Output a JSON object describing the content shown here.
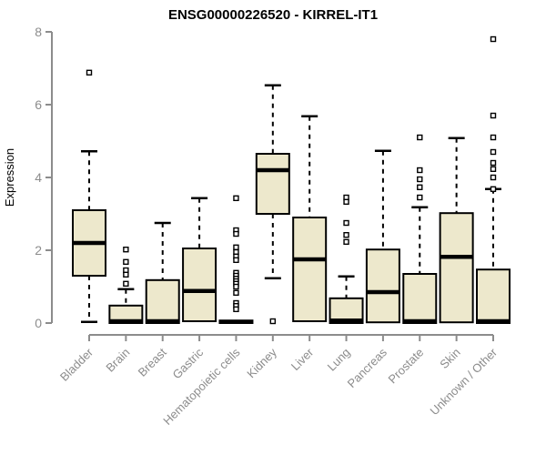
{
  "colors": {
    "background": "#ffffff",
    "box_fill": "#EDE8CC",
    "box_stroke": "#000000",
    "median": "#000000",
    "whisker": "#000000",
    "outlier_stroke": "#000000",
    "outlier_fill": "#ffffff",
    "axis": "#8c8c8c",
    "tick_label": "#8c8c8c",
    "title": "#000000"
  },
  "chart_data": {
    "type": "boxplot",
    "title": "ENSG00000226520 - KIRREL-IT1",
    "xlabel": "",
    "ylabel": "Expression",
    "ylim": [
      0,
      8
    ],
    "yticks": [
      0,
      2,
      4,
      6,
      8
    ],
    "grid": false,
    "legend": "none",
    "categories": [
      "Bladder",
      "Brain",
      "Breast",
      "Gastric",
      "Hematopoietic cells",
      "Kidney",
      "Liver",
      "Lung",
      "Pancreas",
      "Prostate",
      "Skin",
      "Unknown / Other"
    ],
    "series": [
      {
        "name": "Bladder",
        "whisker_low": 0.03,
        "q1": 1.3,
        "median": 2.2,
        "q3": 3.1,
        "whisker_high": 4.72,
        "outliers": [
          6.88
        ]
      },
      {
        "name": "Brain",
        "whisker_low": 0.0,
        "q1": 0.0,
        "median": 0.05,
        "q3": 0.48,
        "whisker_high": 0.93,
        "outliers": [
          2.02,
          1.68,
          1.45,
          1.33,
          1.08
        ]
      },
      {
        "name": "Breast",
        "whisker_low": 0.0,
        "q1": 0.0,
        "median": 0.05,
        "q3": 1.18,
        "whisker_high": 2.75,
        "outliers": []
      },
      {
        "name": "Gastric",
        "whisker_low": 0.05,
        "q1": 0.05,
        "median": 0.88,
        "q3": 2.05,
        "whisker_high": 3.43,
        "outliers": []
      },
      {
        "name": "Hematopoietic cells",
        "whisker_low": 0.0,
        "q1": 0.0,
        "median": 0.03,
        "q3": 0.07,
        "whisker_high": 0.07,
        "outliers": [
          3.43,
          2.55,
          2.45,
          2.08,
          1.95,
          1.83,
          1.73,
          1.38,
          1.3,
          1.22,
          1.15,
          1.08,
          1.0,
          0.83,
          0.55,
          0.47,
          0.38
        ]
      },
      {
        "name": "Kidney",
        "whisker_low": 1.23,
        "q1": 3.0,
        "median": 4.2,
        "q3": 4.65,
        "whisker_high": 6.53,
        "outliers": [
          0.05
        ]
      },
      {
        "name": "Liver",
        "whisker_low": 0.05,
        "q1": 0.05,
        "median": 1.75,
        "q3": 2.9,
        "whisker_high": 5.68,
        "outliers": []
      },
      {
        "name": "Lung",
        "whisker_low": 0.0,
        "q1": 0.0,
        "median": 0.07,
        "q3": 0.68,
        "whisker_high": 1.28,
        "outliers": [
          3.45,
          3.33,
          2.75,
          2.42,
          2.23
        ]
      },
      {
        "name": "Pancreas",
        "whisker_low": 0.02,
        "q1": 0.02,
        "median": 0.85,
        "q3": 2.02,
        "whisker_high": 4.73,
        "outliers": []
      },
      {
        "name": "Prostate",
        "whisker_low": 0.0,
        "q1": 0.0,
        "median": 0.05,
        "q3": 1.35,
        "whisker_high": 3.18,
        "outliers": [
          5.1,
          4.2,
          3.95,
          3.73,
          3.45
        ]
      },
      {
        "name": "Skin",
        "whisker_low": 0.02,
        "q1": 0.02,
        "median": 1.82,
        "q3": 3.02,
        "whisker_high": 5.08,
        "outliers": []
      },
      {
        "name": "Unknown / Other",
        "whisker_low": 0.0,
        "q1": 0.0,
        "median": 0.05,
        "q3": 1.47,
        "whisker_high": 3.68,
        "outliers": [
          7.8,
          5.7,
          5.1,
          4.7,
          4.4,
          4.23,
          4.0,
          3.68
        ]
      }
    ]
  }
}
